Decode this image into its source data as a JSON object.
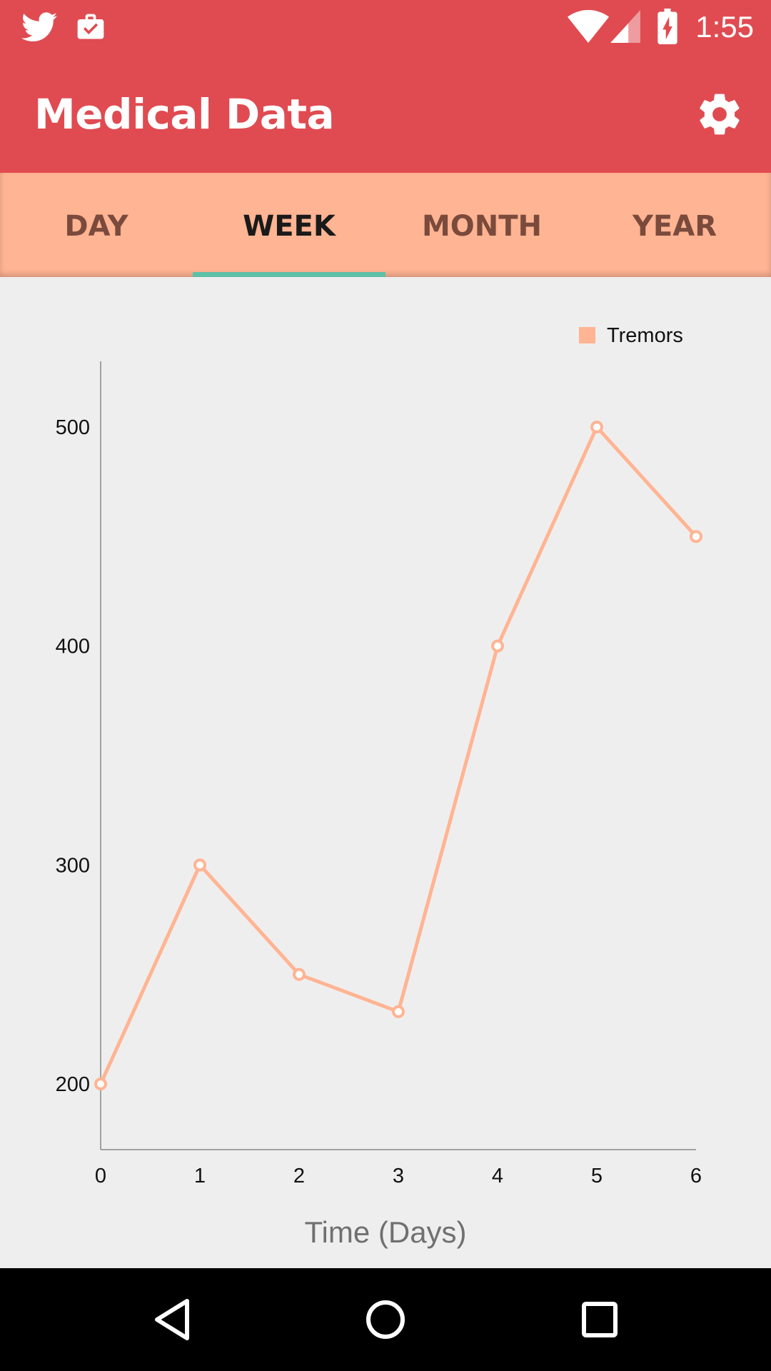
{
  "status_bar": {
    "time": "1:55",
    "left_icons": [
      "twitter-icon",
      "clipboard-check-icon"
    ],
    "right_icons": [
      "wifi-icon",
      "signal-icon",
      "battery-charging-icon"
    ]
  },
  "app_bar": {
    "title": "Medical Data",
    "settings_icon": "gear-icon"
  },
  "tabs": [
    {
      "label": "DAY",
      "active": false
    },
    {
      "label": "WEEK",
      "active": true
    },
    {
      "label": "MONTH",
      "active": false
    },
    {
      "label": "YEAR",
      "active": false
    }
  ],
  "colors": {
    "primary": "#e04b51",
    "tab_bar": "#ffb493",
    "indicator": "#5cc1a8",
    "series": "#ffb493"
  },
  "chart_data": {
    "type": "line",
    "x": [
      0,
      1,
      2,
      3,
      4,
      5,
      6
    ],
    "series": [
      {
        "name": "Tremors",
        "values": [
          200,
          300,
          250,
          233,
          400,
          500,
          450
        ]
      }
    ],
    "xlabel": "Time (Days)",
    "ylabel": "",
    "xticks": [
      "0",
      "1",
      "2",
      "3",
      "4",
      "5",
      "6"
    ],
    "yticks": [
      "200",
      "300",
      "400",
      "500"
    ],
    "xlim": [
      0,
      6
    ],
    "ylim": [
      170,
      530
    ],
    "legend": "top-right",
    "grid": false
  },
  "nav_bar": {
    "icons": [
      "back-icon",
      "home-icon",
      "recents-icon"
    ]
  }
}
